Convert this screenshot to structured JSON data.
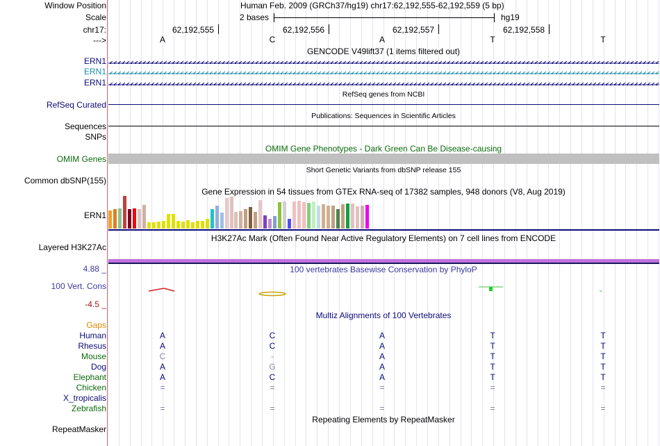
{
  "colors": {
    "navy": "#0a0a7a",
    "teal": "#1e8ca8",
    "omim": "#0a6a0a",
    "gaps": "#e08a00",
    "cons_min": "#a01818",
    "conserv_blue": "#3a3aa0",
    "layered_purple": "#c070e0"
  },
  "labels": {
    "window_position": "Window Position",
    "scale": "Scale",
    "chrom": "chr17:",
    "strand": "--->",
    "ern1_a": "ERN1",
    "ern1_b": "ERN1",
    "ern1_c": "ERN1",
    "refseq": "RefSeq Curated",
    "sequences": "Sequences",
    "snps": "SNPs",
    "omim": "OMIM Genes",
    "dbsnp": "Common dbSNP(155)",
    "gtex_gene": "ERN1",
    "layered": "Layered H3K27Ac",
    "cons_max": "4.88 _",
    "cons_name": "100 Vert. Cons",
    "cons_min": "-4.5 _",
    "gaps": "Gaps",
    "species": [
      "Human",
      "Rhesus",
      "Mouse",
      "Dog",
      "Elephant",
      "Chicken",
      "X_tropicalis",
      "Zebrafish"
    ],
    "repeatmasker": "RepeatMasker"
  },
  "header": {
    "position": "Human Feb. 2009 (GRCh37/hg19)   chr17:62,192,555-62,192,559 (5 bp)",
    "scale_text": "2 bases",
    "assembly": "hg19",
    "coords": [
      "62,192,555",
      "62,192,556",
      "62,192,557",
      "62,192,558"
    ],
    "bases": [
      "A",
      "C",
      "A",
      "T",
      "T"
    ]
  },
  "tracks": {
    "gencode": "GENCODE V49lift37 (1 items filtered out)",
    "refseq": "RefSeq genes from NCBI",
    "publications": "Publications: Sequences in Scientific Articles",
    "omim": "OMIM Gene Phenotypes - Dark Green Can Be Disease-causing",
    "dbsnp": "Short Genetic Variants from dbSNP release 155",
    "gtex": "Gene Expression in 54 tissues from GTEx RNA-seq of 17382 samples, 948 donors (V8, Aug 2019)",
    "h3k27ac": "H3K27Ac Mark (Often Found Near Active Regulatory Elements) on 7 cell lines from ENCODE",
    "phylop": "100 vertebrates Basewise Conservation by PhyloP",
    "multiz": "Multiz Alignments of 100 Vertebrates",
    "repeats": "Repeating Elements by RepeatMasker"
  },
  "alignment": [
    [
      "A",
      "C",
      "A",
      "T",
      "T"
    ],
    [
      "A",
      "C",
      "A",
      "T",
      "T"
    ],
    [
      "C",
      "-",
      "A",
      "T",
      "T"
    ],
    [
      "A",
      "G",
      "A",
      "T",
      "T"
    ],
    [
      "A",
      "C",
      "A",
      "T",
      "T"
    ],
    [
      "=",
      "=",
      "=",
      "=",
      "="
    ],
    [
      "",
      "",
      "",
      "",
      ""
    ],
    [
      "=",
      "=",
      "=",
      "=",
      "="
    ]
  ],
  "gtex_expression": {
    "tissue_count": 54,
    "levels": [
      0.55,
      0.6,
      0.62,
      1.0,
      0.6,
      0.62,
      0.6,
      0.72,
      0.2,
      0.2,
      0.22,
      0.24,
      0.44,
      0.44,
      0.24,
      0.22,
      0.26,
      0.2,
      0.24,
      0.24,
      0.3,
      0.6,
      0.7,
      0.48,
      0.94,
      0.98,
      0.5,
      0.54,
      0.6,
      0.66,
      0.5,
      0.88,
      0.4,
      0.3,
      0.38,
      0.8,
      0.84,
      0.3,
      0.84,
      0.86,
      0.8,
      0.78,
      0.84,
      0.7,
      0.74,
      0.7,
      0.7,
      0.6,
      0.74,
      0.76,
      0.76,
      0.68,
      0.7,
      0.72
    ],
    "colors": [
      "#f0a030",
      "#e08020",
      "#90c090",
      "#c04040",
      "#800020",
      "#e01010",
      "#e0c0c0",
      "#d0b0a0",
      "#e0e000",
      "#e0e000",
      "#e0e000",
      "#e0e000",
      "#e0e000",
      "#e0e000",
      "#e0e000",
      "#e0e000",
      "#e0e000",
      "#e0e000",
      "#e0e000",
      "#e0e000",
      "#e0e000",
      "#20c0d0",
      "#90b0e0",
      "#a0c0e0",
      "#e8c8c8",
      "#e0c0c0",
      "#e0c0b0",
      "#d0b0a0",
      "#c0a080",
      "#806040",
      "#c0a080",
      "#e8c8c8",
      "#8040c0",
      "#c090d0",
      "#80a0d0",
      "#90c040",
      "#d0d0d0",
      "#5050f0",
      "#f0c0c0",
      "#f0c0c0",
      "#f0c0c0",
      "#80d080",
      "#c0f0c0",
      "#c0e0e0",
      "#d0b090",
      "#d0b090",
      "#c0a080",
      "#508050",
      "#c0a080",
      "#10a040",
      "#e0c0c0",
      "#e0c0c0",
      "#d0b0b0",
      "#f000f0"
    ]
  }
}
